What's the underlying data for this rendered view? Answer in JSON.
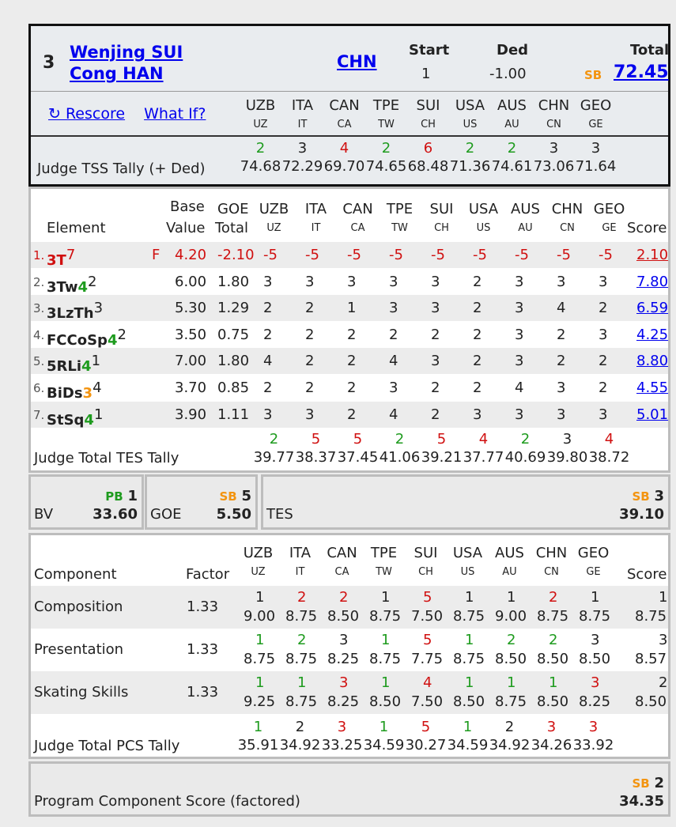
{
  "skater": {
    "rank": "3",
    "name1": "Wenjing SUI",
    "name2": "Cong HAN",
    "nation": "CHN",
    "start_label": "Start",
    "start": "1",
    "ded_label": "Ded",
    "ded": "-1.00",
    "total_label": "Total",
    "total_badge": "SB",
    "total": "72.45"
  },
  "links": {
    "rescore": "↻ Rescore",
    "whatif": "What If?"
  },
  "judges": [
    {
      "code": "UZB",
      "short": "UZ"
    },
    {
      "code": "ITA",
      "short": "IT"
    },
    {
      "code": "CAN",
      "short": "CA"
    },
    {
      "code": "TPE",
      "short": "TW"
    },
    {
      "code": "SUI",
      "short": "CH"
    },
    {
      "code": "USA",
      "short": "US"
    },
    {
      "code": "AUS",
      "short": "AU"
    },
    {
      "code": "CHN",
      "short": "CN"
    },
    {
      "code": "GEO",
      "short": "GE"
    }
  ],
  "tss_tally": {
    "label": "Judge TSS Tally (+ Ded)",
    "ranks": [
      "2",
      "3",
      "4",
      "2",
      "6",
      "2",
      "2",
      "3",
      "3"
    ],
    "rank_colors": [
      "green",
      "",
      "red",
      "green",
      "red",
      "green",
      "green",
      "",
      ""
    ],
    "values": [
      "74.68",
      "72.29",
      "69.70",
      "74.65",
      "68.48",
      "71.36",
      "74.61",
      "73.06",
      "71.64"
    ]
  },
  "elements_header": {
    "element": "Element",
    "base1": "Base",
    "base2": "Value",
    "goe1": "GOE",
    "goe2": "Total",
    "score": "Score"
  },
  "elements": [
    {
      "num": "1.",
      "name": "3T",
      "level": "",
      "sup": "7",
      "flag": "F",
      "base": "4.20",
      "goe": "-2.10",
      "marks": [
        "-5",
        "-5",
        "-5",
        "-5",
        "-5",
        "-5",
        "-5",
        "-5",
        "-5"
      ],
      "score": "2.10",
      "red": true
    },
    {
      "num": "2.",
      "name": "3Tw",
      "level": "4",
      "sup": "2",
      "flag": "",
      "base": "6.00",
      "goe": "1.80",
      "marks": [
        "3",
        "3",
        "3",
        "3",
        "3",
        "2",
        "3",
        "3",
        "3"
      ],
      "score": "7.80",
      "red": false
    },
    {
      "num": "3.",
      "name": "3LzTh",
      "level": "",
      "sup": "3",
      "flag": "",
      "base": "5.30",
      "goe": "1.29",
      "marks": [
        "2",
        "2",
        "1",
        "3",
        "3",
        "2",
        "3",
        "4",
        "2"
      ],
      "score": "6.59",
      "red": false
    },
    {
      "num": "4.",
      "name": "FCCoSp",
      "level": "4",
      "sup": "2",
      "flag": "",
      "base": "3.50",
      "goe": "0.75",
      "marks": [
        "2",
        "2",
        "2",
        "2",
        "2",
        "2",
        "3",
        "2",
        "3"
      ],
      "score": "4.25",
      "red": false
    },
    {
      "num": "5.",
      "name": "5RLi",
      "level": "4",
      "sup": "1",
      "flag": "",
      "base": "7.00",
      "goe": "1.80",
      "marks": [
        "4",
        "2",
        "2",
        "4",
        "3",
        "2",
        "3",
        "2",
        "2"
      ],
      "score": "8.80",
      "red": false
    },
    {
      "num": "6.",
      "name": "BiDs",
      "level": "3",
      "sup": "4",
      "flag": "",
      "base": "3.70",
      "goe": "0.85",
      "marks": [
        "2",
        "2",
        "2",
        "3",
        "2",
        "2",
        "4",
        "3",
        "2"
      ],
      "score": "4.55",
      "red": false
    },
    {
      "num": "7.",
      "name": "StSq",
      "level": "4",
      "sup": "1",
      "flag": "",
      "base": "3.90",
      "goe": "1.11",
      "marks": [
        "3",
        "3",
        "2",
        "4",
        "2",
        "3",
        "3",
        "3",
        "3"
      ],
      "score": "5.01",
      "red": false
    }
  ],
  "tes_tally": {
    "label": "Judge Total TES Tally",
    "ranks": [
      "2",
      "5",
      "5",
      "2",
      "5",
      "4",
      "2",
      "3",
      "4"
    ],
    "rank_colors": [
      "green",
      "red",
      "red",
      "green",
      "red",
      "red",
      "green",
      "",
      "red"
    ],
    "values": [
      "39.77",
      "38.37",
      "37.45",
      "41.06",
      "39.21",
      "37.77",
      "40.69",
      "39.80",
      "38.72"
    ]
  },
  "bv": {
    "badge": "PB",
    "rank": "1",
    "label": "BV",
    "value": "33.60"
  },
  "goe": {
    "badge": "SB",
    "rank": "5",
    "label": "GOE",
    "value": "5.50"
  },
  "tes": {
    "badge": "SB",
    "rank": "3",
    "label": "TES",
    "value": "39.10"
  },
  "pcs_header": {
    "component": "Component",
    "factor": "Factor",
    "score": "Score"
  },
  "components": [
    {
      "name": "Composition",
      "factor": "1.33",
      "ranks": [
        "1",
        "2",
        "2",
        "1",
        "5",
        "1",
        "1",
        "2",
        "1"
      ],
      "rank_colors": [
        "",
        "red",
        "red",
        "",
        "red",
        "",
        "",
        "red",
        ""
      ],
      "marks": [
        "9.00",
        "8.75",
        "8.50",
        "8.75",
        "7.50",
        "8.75",
        "9.00",
        "8.75",
        "8.75"
      ],
      "score_rank": "1",
      "score": "8.75"
    },
    {
      "name": "Presentation",
      "factor": "1.33",
      "ranks": [
        "1",
        "2",
        "3",
        "1",
        "5",
        "1",
        "2",
        "2",
        "3"
      ],
      "rank_colors": [
        "green",
        "green",
        "",
        "green",
        "red",
        "green",
        "green",
        "green",
        ""
      ],
      "marks": [
        "8.75",
        "8.75",
        "8.25",
        "8.75",
        "7.75",
        "8.75",
        "8.50",
        "8.50",
        "8.50"
      ],
      "score_rank": "3",
      "score": "8.57"
    },
    {
      "name": "Skating Skills",
      "factor": "1.33",
      "ranks": [
        "1",
        "1",
        "3",
        "1",
        "4",
        "1",
        "1",
        "1",
        "3"
      ],
      "rank_colors": [
        "green",
        "green",
        "red",
        "green",
        "red",
        "green",
        "green",
        "green",
        "red"
      ],
      "marks": [
        "9.25",
        "8.75",
        "8.25",
        "8.50",
        "7.50",
        "8.50",
        "8.75",
        "8.50",
        "8.25"
      ],
      "score_rank": "2",
      "score": "8.50"
    }
  ],
  "pcs_tally": {
    "label": "Judge Total PCS Tally",
    "ranks": [
      "1",
      "2",
      "3",
      "1",
      "5",
      "1",
      "2",
      "3",
      "3"
    ],
    "rank_colors": [
      "green",
      "",
      "red",
      "green",
      "red",
      "green",
      "",
      "red",
      "red"
    ],
    "values": [
      "35.91",
      "34.92",
      "33.25",
      "34.59",
      "30.27",
      "34.59",
      "34.92",
      "34.26",
      "33.92"
    ]
  },
  "pcs_score": {
    "label": "Program Component Score (factored)",
    "badge": "SB",
    "rank": "2",
    "value": "34.35"
  }
}
